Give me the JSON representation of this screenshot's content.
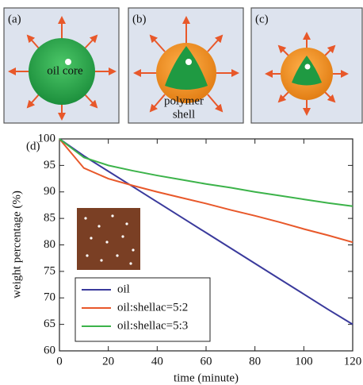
{
  "panels": [
    {
      "label": "(a)",
      "text": [
        "oil core"
      ]
    },
    {
      "label": "(b)",
      "text": [
        "polymer",
        "shell"
      ]
    },
    {
      "label": "(c)"
    }
  ],
  "chart_data": {
    "type": "line",
    "panel_label": "(d)",
    "x_label": "time (minute)",
    "y_label": "weight percentage (%)",
    "x": [
      0,
      10,
      20,
      30,
      40,
      50,
      60,
      70,
      80,
      90,
      100,
      110,
      120
    ],
    "series": [
      {
        "name": "oil",
        "color": "#3a3a9c",
        "values": [
          100,
          96.8,
          93.9,
          91.0,
          88.1,
          85.2,
          82.3,
          79.4,
          76.5,
          73.6,
          70.7,
          67.8,
          65.0
        ]
      },
      {
        "name": "oil:shellac=5:2",
        "color": "#e8582a",
        "values": [
          100,
          94.5,
          92.5,
          91.2,
          90.0,
          88.9,
          87.8,
          86.6,
          85.5,
          84.3,
          83.0,
          81.8,
          80.5
        ]
      },
      {
        "name": "oil:shellac=5:3",
        "color": "#3cb34a",
        "values": [
          100,
          96.5,
          95.0,
          94.0,
          93.1,
          92.3,
          91.5,
          90.8,
          90.0,
          89.3,
          88.6,
          87.9,
          87.3
        ]
      }
    ],
    "xlim": [
      0,
      120
    ],
    "xticks": [
      0,
      20,
      40,
      60,
      80,
      100,
      120
    ],
    "ylim": [
      60,
      100
    ],
    "yticks": [
      60,
      65,
      70,
      75,
      80,
      85,
      90,
      95,
      100
    ]
  }
}
